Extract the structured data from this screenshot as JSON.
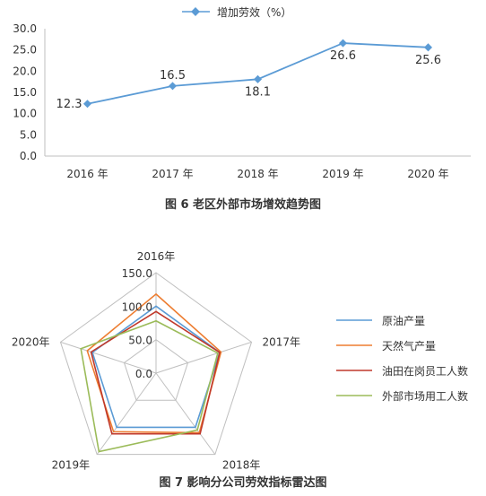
{
  "figure6": {
    "caption": "图 6   老区外部市场增效趋势图",
    "chart_data": {
      "type": "line",
      "title": "",
      "categories": [
        "2016 年",
        "2017 年",
        "2018 年",
        "2019 年",
        "2020 年"
      ],
      "series": [
        {
          "name": "增加劳效（%）",
          "values": [
            12.3,
            16.5,
            18.1,
            26.6,
            25.6
          ],
          "color": "#5b9bd5"
        }
      ],
      "data_labels": [
        "12.3",
        "16.5",
        "18.1",
        "26.6",
        "25.6"
      ],
      "ylim": [
        0,
        30
      ],
      "y_ticks": [
        "0.0",
        "5.0",
        "10.0",
        "15.0",
        "20.0",
        "25.0",
        "30.0"
      ],
      "legend_position": "top",
      "grid": false
    }
  },
  "figure7": {
    "caption": "图 7   影响分公司劳效指标雷达图",
    "chart_data": {
      "type": "radar",
      "axes": [
        "2016年",
        "2017年",
        "2018年",
        "2019年",
        "2020年"
      ],
      "rlim": [
        0,
        150
      ],
      "r_ticks": [
        "0.0",
        "50.0",
        "100.0",
        "150.0"
      ],
      "legend_position": "right",
      "series": [
        {
          "name": "原油产量",
          "values": [
            100,
            100,
            100,
            100,
            100
          ],
          "color": "#5b9bd5"
        },
        {
          "name": "天然气产量",
          "values": [
            118,
            102,
            110,
            108,
            108
          ],
          "color": "#ed7d31"
        },
        {
          "name": "油田在岗员工人数",
          "values": [
            92,
            100,
            112,
            112,
            102
          ],
          "color": "#c0392b"
        },
        {
          "name": "外部市场用工人数",
          "values": [
            78,
            97,
            105,
            145,
            118
          ],
          "color": "#9bbb59"
        }
      ]
    }
  }
}
